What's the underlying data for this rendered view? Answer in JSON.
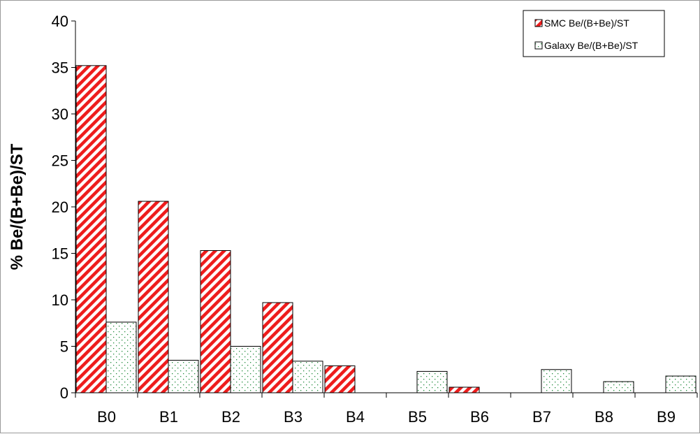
{
  "chart_data": {
    "type": "bar",
    "title": "",
    "xlabel": "",
    "ylabel": "% Be/(B+Be)/ST",
    "ylim": [
      0,
      40
    ],
    "yticks": [
      0,
      5,
      10,
      15,
      20,
      25,
      30,
      35,
      40
    ],
    "grid": false,
    "legend_position": "top-right",
    "categories": [
      "B0",
      "B1",
      "B2",
      "B3",
      "B4",
      "B5",
      "B6",
      "B7",
      "B8",
      "B9"
    ],
    "series": [
      {
        "name": "SMC Be/(B+Be)/ST",
        "pattern": "diagonal-hatch",
        "color": "#ee1c1c",
        "values": [
          35.2,
          20.6,
          15.3,
          9.7,
          2.9,
          0,
          0.6,
          0,
          0,
          0
        ]
      },
      {
        "name": "Galaxy Be/(B+Be)/ST",
        "pattern": "dotted",
        "color": "#1f8a3a",
        "values": [
          7.6,
          3.5,
          5.0,
          3.4,
          0,
          2.3,
          0,
          2.5,
          1.2,
          1.8
        ]
      }
    ]
  }
}
